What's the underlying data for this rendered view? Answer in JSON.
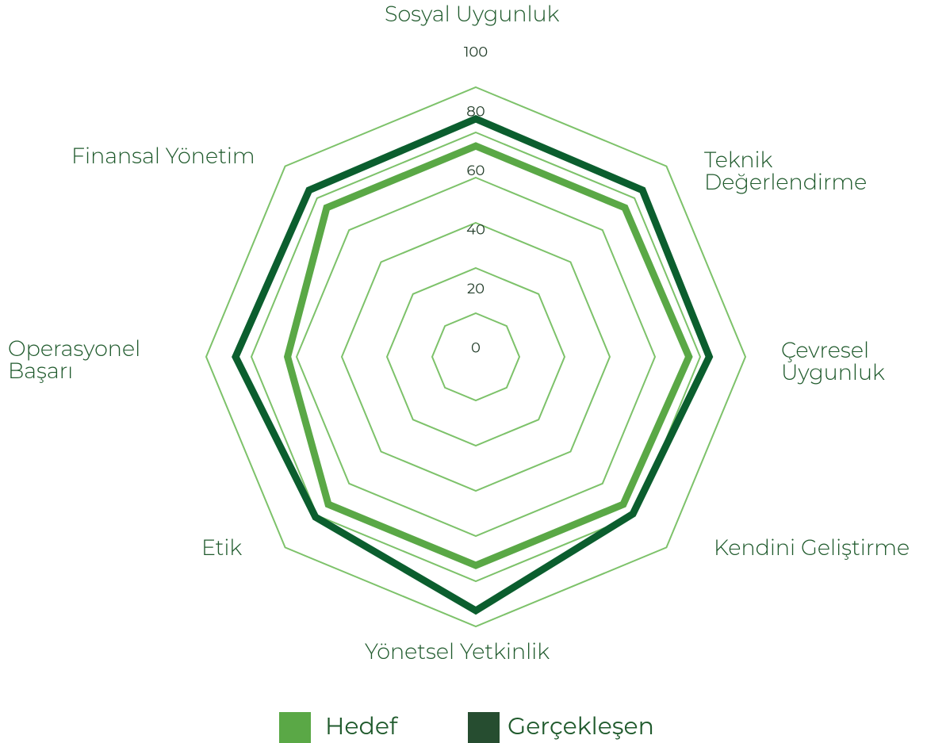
{
  "chart_data": {
    "type": "radar",
    "categories": [
      "Sosyal Uygunluk",
      "Teknik Değerlendirme",
      "Çevresel Uygunluk",
      "Kendini Geliştirme",
      "Yönetsel Yetkinlik",
      "Etik",
      "Operasyonel Başarı",
      "Finansal Yönetim"
    ],
    "series": [
      {
        "name": "Hedef",
        "color": "#5aa846",
        "values": [
          74,
          74,
          75,
          73,
          73,
          73,
          64,
          74
        ]
      },
      {
        "name": "Gerçekleşen",
        "color": "#0b5e2e",
        "legend_color": "#264d30",
        "values": [
          86,
          85,
          84,
          79,
          93,
          81,
          87,
          85
        ]
      }
    ],
    "rlim": [
      0,
      100
    ],
    "rticks": [
      0,
      20,
      40,
      60,
      80,
      100
    ],
    "grid_color": "#7dc26a"
  }
}
